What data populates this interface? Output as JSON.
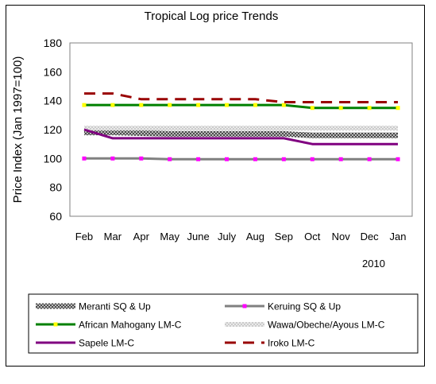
{
  "chart_data": {
    "type": "line",
    "title": "Tropical Log price Trends",
    "ylabel": "Price Index (Jan 1997=100)",
    "xlabel": "",
    "year_label": "2010",
    "categories": [
      "Feb",
      "Mar",
      "Apr",
      "May",
      "June",
      "July",
      "Aug",
      "Sep",
      "Oct",
      "Nov",
      "Dec",
      "Jan"
    ],
    "ylim": [
      60,
      180
    ],
    "yticks": [
      60,
      80,
      100,
      120,
      140,
      160,
      180
    ],
    "grid": false,
    "legend_position": "bottom",
    "series": [
      {
        "name": "Meranti SQ & Up",
        "color": "#555555",
        "style": "crosshatch",
        "values": [
          118,
          118,
          117.5,
          117,
          117,
          117,
          117,
          117,
          116,
          116,
          116,
          116
        ]
      },
      {
        "name": "Keruing SQ & Up",
        "color": "#808080",
        "style": "solid-markers",
        "marker_color": "#ff00ff",
        "values": [
          100,
          100,
          100,
          99.5,
          99.5,
          99.5,
          99.5,
          99.5,
          99.5,
          99.5,
          99.5,
          99.5
        ]
      },
      {
        "name": "African Mahogany LM-C",
        "color": "#008000",
        "style": "solid-markers",
        "marker_color": "#ffff00",
        "values": [
          137,
          137,
          137,
          137,
          137,
          137,
          137,
          137,
          135,
          135,
          135,
          135
        ]
      },
      {
        "name": "Wawa/Obeche/Ayous LM-C",
        "color": "#c8c8c8",
        "style": "light-hatch",
        "values": [
          121,
          121,
          121,
          121,
          121,
          121,
          121,
          121,
          121,
          121,
          121,
          121
        ]
      },
      {
        "name": "Sapele LM-C",
        "color": "#800080",
        "style": "solid",
        "values": [
          120,
          114,
          114,
          114,
          114,
          114,
          114,
          114,
          110,
          110,
          110,
          110
        ]
      },
      {
        "name": "Iroko LM-C",
        "color": "#990000",
        "style": "dashed",
        "values": [
          145,
          145,
          141,
          141,
          141,
          141,
          141,
          139,
          139,
          139,
          139,
          139
        ]
      }
    ]
  }
}
